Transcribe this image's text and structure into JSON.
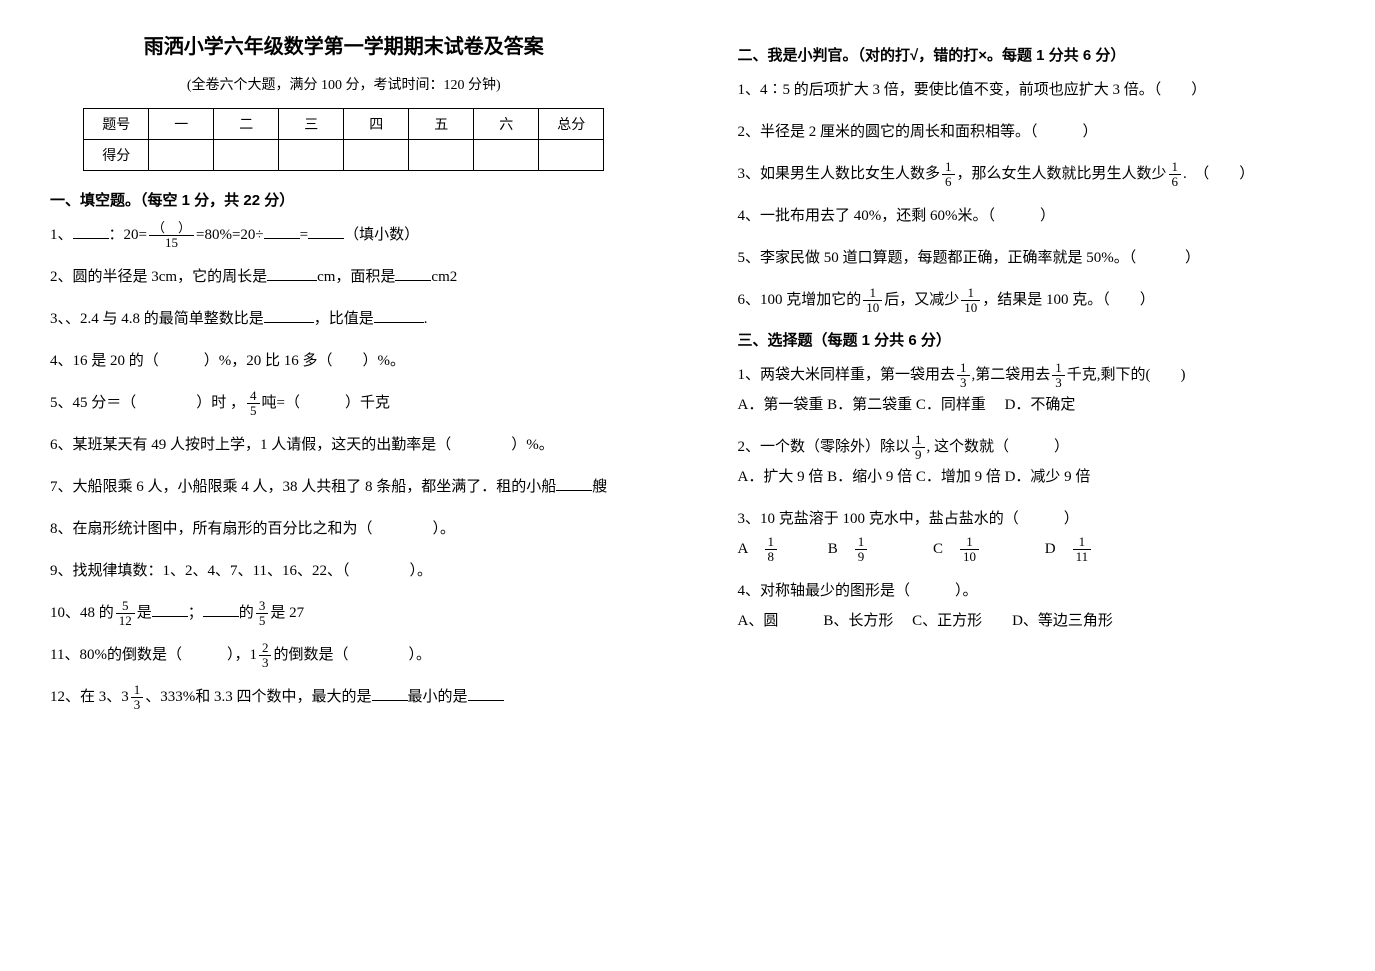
{
  "title": "雨洒小学六年级数学第一学期期末试卷及答案",
  "subtitle": "(全卷六个大题，满分 100 分，考试时间：120 分钟)",
  "score_table": {
    "headers": [
      "题号",
      "一",
      "二",
      "三",
      "四",
      "五",
      "六",
      "总分"
    ],
    "row2_first": "得分"
  },
  "sec1": {
    "title": "一、填空题。（每空 1 分，共 22 分）",
    "q1_a": "1、",
    "q1_b": "：20=",
    "q1_c": "=80%=20÷",
    "q1_d": "=",
    "q1_e": "（填小数）",
    "q1_frac_num": "（　）",
    "q1_frac_den": "15",
    "q2": "2、圆的半径是 3cm，它的周长是",
    "q2_b": "cm，面积是",
    "q2_c": "cm2",
    "q3": "3、、2.4 与 4.8 的最简单整数比是",
    "q3_b": "，比值是",
    "q3_c": ".",
    "q4": "4、16 是 20 的（　　　）%，20 比 16 多（　　）%。",
    "q5_a": "5、45 分＝（　　　　）时 ，",
    "q5_b": "吨=（　　　）千克",
    "q5_frac_num": "4",
    "q5_frac_den": "5",
    "q6": "6、某班某天有 49 人按时上学，1 人请假，这天的出勤率是（　　　　）%。",
    "q7": "7、大船限乘 6 人，小船限乘 4 人，38 人共租了 8 条船，都坐满了．租的小船",
    "q7_b": "艘",
    "q8": "8、在扇形统计图中，所有扇形的百分比之和为（　　　　）。",
    "q9": "9、找规律填数：1、2、4、7、11、16、22、（　　　　）。",
    "q10_a": "10、48 的",
    "q10_b": "是",
    "q10_c": "；",
    "q10_d": "的",
    "q10_e": "是 27",
    "q10_frac1_num": "5",
    "q10_frac1_den": "12",
    "q10_frac2_num": "3",
    "q10_frac2_den": "5",
    "q11_a": "11、80%的倒数是（　　　），1",
    "q11_b": "的倒数是（　　　　）。",
    "q11_frac_num": "2",
    "q11_frac_den": "3",
    "q12_a": "12、在 3、3",
    "q12_b": "、333%和 3.3 四个数中，最大的是",
    "q12_c": "最小的是",
    "q12_frac_num": "1",
    "q12_frac_den": "3"
  },
  "sec2": {
    "title": "二、我是小判官。（对的打√，错的打×。每题 1 分共 6 分）",
    "q1": "1、4∶5 的后项扩大 3 倍，要使比值不变，前项也应扩大 3 倍。（　　）",
    "q2": "2、半径是 2 厘米的圆它的周长和面积相等。（　　　）",
    "q3_a": "3、如果男生人数比女生人数多",
    "q3_b": "，那么女生人数就比男生人数少",
    "q3_c": ".　（　　）",
    "q3_frac_num": "1",
    "q3_frac_den": "6",
    "q4": "4、一批布用去了 40%，还剩 60%米。（　　　）",
    "q5": "5、李家民做 50 道口算题，每题都正确，正确率就是 50%。（ 　　　）",
    "q6_a": "6、100 克增加它的",
    "q6_b": "后，又减少",
    "q6_c": "，结果是 100 克。（　　）",
    "q6_frac1_num": "1",
    "q6_frac1_den": "10",
    "q6_frac2_num": "1",
    "q6_frac2_den": "10"
  },
  "sec3": {
    "title": "三、选择题（每题 1 分共 6 分）",
    "q1_a": "1、两袋大米同样重，第一袋用去",
    "q1_b": ",第二袋用去",
    "q1_c": "千克,剩下的(　　)",
    "q1_frac_num": "1",
    "q1_frac_den": "3",
    "q1_opts": "A．第一袋重 B．第二袋重 C．同样重　 D．不确定",
    "q2_a": "2、一个数（零除外）除以",
    "q2_b": ",  这个数就（　　　）",
    "q2_frac_num": "1",
    "q2_frac_den": "9",
    "q2_opts": "A．扩大 9 倍 B．缩小 9 倍 C．增加 9 倍 D．减少 9 倍",
    "q3": "3、10 克盐溶于 100 克水中，盐占盐水的（　　　）",
    "q3_optA": "A　",
    "q3_optB": "　　　B　",
    "q3_optC": "　　　　C　",
    "q3_optD": "　　　　D　",
    "q3_f1n": "1",
    "q3_f1d": "8",
    "q3_f2n": "1",
    "q3_f2d": "9",
    "q3_f3n": "1",
    "q3_f3d": "10",
    "q3_f4n": "1",
    "q3_f4d": "11",
    "q4": "4、对称轴最少的图形是（　　　）。",
    "q4_opts": "A、圆　　　B、长方形　 C、正方形　　D、等边三角形"
  }
}
